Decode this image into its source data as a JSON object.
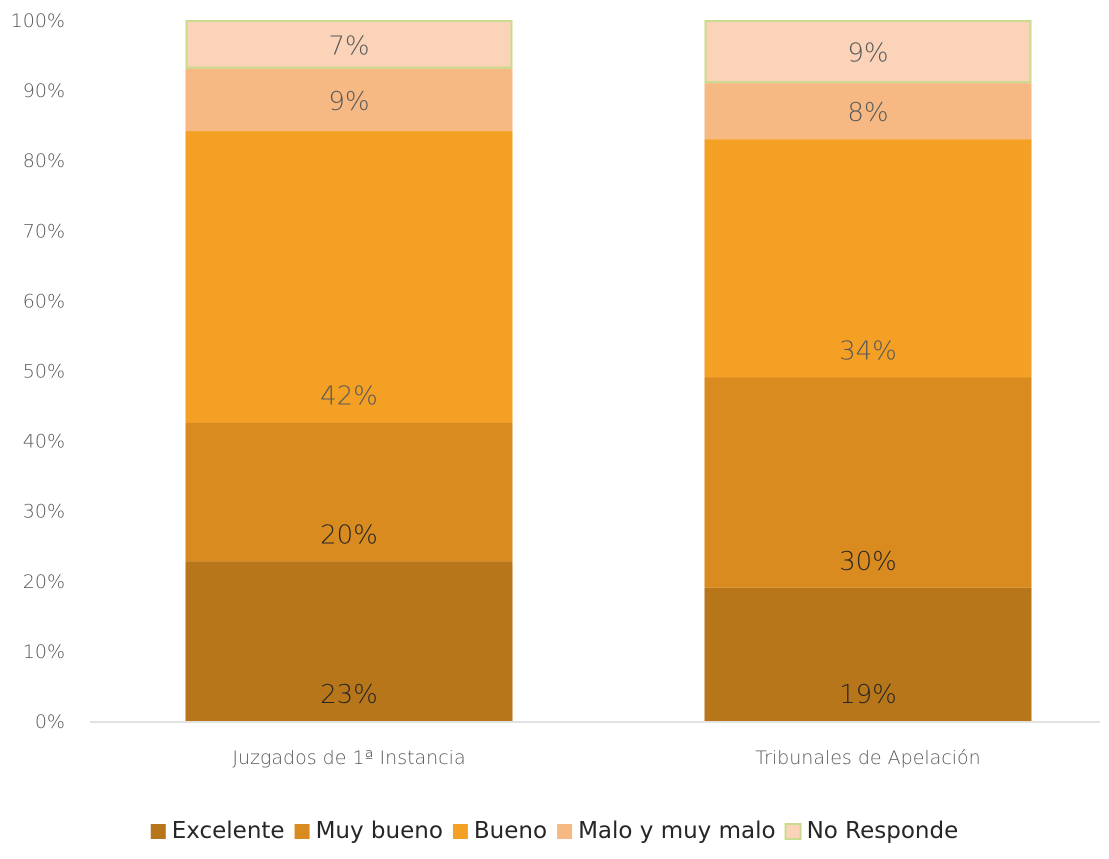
{
  "chart_data": {
    "type": "bar",
    "stacked": true,
    "percent_stacked": true,
    "categories": [
      "Juzgados de 1ª Instancia",
      "Tribunales de Apelación"
    ],
    "series": [
      {
        "name": "Excelente",
        "values": [
          23,
          19
        ],
        "labels": [
          "23%",
          "19%"
        ],
        "color": "#B8761A"
      },
      {
        "name": "Muy bueno",
        "values": [
          20,
          30
        ],
        "labels": [
          "20%",
          "30%"
        ],
        "color": "#D98B20"
      },
      {
        "name": "Bueno",
        "values": [
          42,
          34
        ],
        "labels": [
          "42%",
          "34%"
        ],
        "color": "#F4A025"
      },
      {
        "name": "Malo y muy malo",
        "values": [
          9,
          8
        ],
        "labels": [
          "9%",
          "8%"
        ],
        "color": "#F6B984"
      },
      {
        "name": "No Responde",
        "values": [
          7,
          9
        ],
        "labels": [
          "7%",
          "9%"
        ],
        "color": "#FAD3B8",
        "border_color": "#C9DB8E"
      }
    ],
    "y_ticks": [
      "0%",
      "10%",
      "20%",
      "30%",
      "40%",
      "50%",
      "60%",
      "70%",
      "80%",
      "90%",
      "100%"
    ],
    "ylim": [
      0,
      100
    ],
    "grid": false,
    "legend_position": "bottom",
    "title": "",
    "xlabel": "",
    "ylabel": ""
  }
}
